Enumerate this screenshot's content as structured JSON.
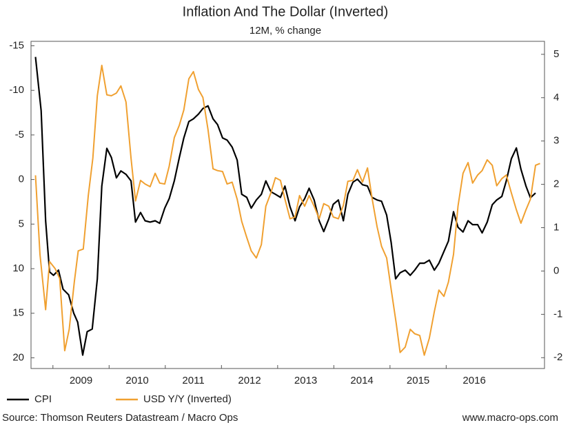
{
  "chart_data": {
    "type": "line",
    "title": "Inflation And The Dollar (Inverted)",
    "subtitle": "12M, % change",
    "source": "Source: Thomson Reuters Datastream / Macro Ops",
    "credit": "www.macro-ops.com",
    "xlim": [
      2008.61,
      2017.75
    ],
    "xticks": [
      {
        "value": 2009,
        "label": "2009"
      },
      {
        "value": 2010,
        "label": "2010"
      },
      {
        "value": 2011,
        "label": "2011"
      },
      {
        "value": 2012,
        "label": "2012"
      },
      {
        "value": 2013,
        "label": "2013"
      },
      {
        "value": 2014,
        "label": "2014"
      },
      {
        "value": 2015,
        "label": "2015"
      },
      {
        "value": 2016,
        "label": "2016"
      }
    ],
    "ylim": [
      -15.5,
      21.2
    ],
    "y_inverted": true,
    "yticks": [
      -15,
      -10,
      -5,
      0,
      5,
      10,
      15,
      20
    ],
    "y2lim": [
      -2.25,
      5.3
    ],
    "y2ticks": [
      -2,
      -1,
      0,
      1,
      2,
      3,
      4,
      5
    ],
    "grid": false,
    "legend": "bottom",
    "series": [
      {
        "name": "CPI",
        "color": "#000000",
        "axis": "y2",
        "x": [
          2008.69,
          2008.79,
          2008.87,
          2008.94,
          2009.01,
          2009.1,
          2009.18,
          2009.28,
          2009.37,
          2009.44,
          2009.53,
          2009.61,
          2009.7,
          2009.79,
          2009.87,
          2009.96,
          2010.04,
          2010.13,
          2010.21,
          2010.3,
          2010.39,
          2010.47,
          2010.56,
          2010.64,
          2010.73,
          2010.82,
          2010.9,
          2010.99,
          2011.07,
          2011.16,
          2011.25,
          2011.33,
          2011.42,
          2011.5,
          2011.59,
          2011.67,
          2011.76,
          2011.85,
          2011.93,
          2012.02,
          2012.1,
          2012.19,
          2012.28,
          2012.36,
          2012.45,
          2012.53,
          2012.62,
          2012.71,
          2012.79,
          2012.88,
          2012.96,
          2013.05,
          2013.13,
          2013.22,
          2013.31,
          2013.39,
          2013.48,
          2013.56,
          2013.65,
          2013.74,
          2013.82,
          2013.91,
          2013.99,
          2014.08,
          2014.17,
          2014.25,
          2014.34,
          2014.42,
          2014.51,
          2014.6,
          2014.68,
          2014.77,
          2014.85,
          2014.94,
          2015.02,
          2015.1,
          2015.18,
          2015.27,
          2015.36,
          2015.44,
          2015.53,
          2015.61,
          2015.7,
          2015.79,
          2015.87,
          2015.96,
          2016.04,
          2016.13,
          2016.21,
          2016.3,
          2016.39,
          2016.47,
          2016.56,
          2016.64,
          2016.73,
          2016.82,
          2016.9,
          2016.99,
          2017.07,
          2017.16,
          2017.25,
          2017.33,
          2017.42,
          2017.5,
          2017.59
        ],
        "values": [
          4.94,
          3.7,
          1.16,
          -0.02,
          -0.1,
          0.02,
          -0.42,
          -0.55,
          -0.97,
          -1.18,
          -1.94,
          -1.4,
          -1.34,
          -0.18,
          1.96,
          2.83,
          2.62,
          2.15,
          2.31,
          2.23,
          2.08,
          1.13,
          1.35,
          1.16,
          1.13,
          1.16,
          1.1,
          1.45,
          1.67,
          2.08,
          2.62,
          3.07,
          3.45,
          3.51,
          3.62,
          3.75,
          3.81,
          3.51,
          3.38,
          3.07,
          3.02,
          2.86,
          2.56,
          1.77,
          1.7,
          1.45,
          1.64,
          1.77,
          2.08,
          1.83,
          1.77,
          1.7,
          1.96,
          1.48,
          1.16,
          1.48,
          1.67,
          1.91,
          1.64,
          1.16,
          0.91,
          1.2,
          1.54,
          1.64,
          1.16,
          1.77,
          2.05,
          2.12,
          1.99,
          1.96,
          1.7,
          1.64,
          1.61,
          1.29,
          0.66,
          -0.18,
          -0.04,
          0.02,
          -0.1,
          0.02,
          0.18,
          0.18,
          0.25,
          0.02,
          0.18,
          0.45,
          0.69,
          1.37,
          1.01,
          0.9,
          1.16,
          1.07,
          1.07,
          0.88,
          1.13,
          1.53,
          1.64,
          1.72,
          2.08,
          2.59,
          2.84,
          2.35,
          1.96,
          1.69,
          1.8
        ]
      },
      {
        "name": "USD Y/Y (Inverted)",
        "color": "#f0a030",
        "axis": "y",
        "x": [
          2008.69,
          2008.77,
          2008.87,
          2008.94,
          2009.04,
          2009.12,
          2009.21,
          2009.29,
          2009.38,
          2009.45,
          2009.54,
          2009.63,
          2009.71,
          2009.79,
          2009.87,
          2009.96,
          2010.04,
          2010.13,
          2010.21,
          2010.3,
          2010.39,
          2010.47,
          2010.56,
          2010.64,
          2010.73,
          2010.82,
          2010.9,
          2010.99,
          2011.07,
          2011.16,
          2011.25,
          2011.33,
          2011.42,
          2011.5,
          2011.59,
          2011.67,
          2011.76,
          2011.85,
          2011.93,
          2012.02,
          2012.1,
          2012.19,
          2012.28,
          2012.36,
          2012.45,
          2012.53,
          2012.62,
          2012.71,
          2012.79,
          2012.88,
          2012.96,
          2013.05,
          2013.13,
          2013.22,
          2013.31,
          2013.39,
          2013.48,
          2013.56,
          2013.65,
          2013.74,
          2013.82,
          2013.91,
          2013.99,
          2014.08,
          2014.17,
          2014.25,
          2014.34,
          2014.42,
          2014.51,
          2014.6,
          2014.68,
          2014.77,
          2014.85,
          2014.94,
          2015.02,
          2015.11,
          2015.18,
          2015.27,
          2015.36,
          2015.44,
          2015.53,
          2015.61,
          2015.7,
          2015.79,
          2015.87,
          2015.96,
          2016.04,
          2016.13,
          2016.21,
          2016.3,
          2016.39,
          2016.47,
          2016.56,
          2016.64,
          2016.73,
          2016.82,
          2016.9,
          2016.99,
          2017.07,
          2017.16,
          2017.25,
          2017.33,
          2017.42,
          2017.5,
          2017.59,
          2017.67
        ],
        "values": [
          -0.47,
          8.4,
          14.6,
          9.2,
          10,
          11.1,
          19.2,
          16.8,
          11.5,
          8.0,
          7.8,
          1.8,
          -2.4,
          -9.4,
          -12.8,
          -9.5,
          -9.4,
          -9.7,
          -10.5,
          -8.7,
          -2.4,
          2.4,
          0.1,
          0.5,
          0.8,
          -0.7,
          0.4,
          0.5,
          -1.5,
          -4.7,
          -6.1,
          -7.8,
          -11.3,
          -12.1,
          -10.1,
          -9.2,
          -5.6,
          -1.2,
          -1.0,
          -0.9,
          0.5,
          0.3,
          2.2,
          4.7,
          6.5,
          8.0,
          8.8,
          7.3,
          3.0,
          1.5,
          -0.2,
          0.1,
          2.2,
          4.4,
          4.2,
          1.8,
          3.0,
          1.8,
          3.0,
          4.4,
          2.7,
          3.0,
          4.2,
          4.4,
          2.9,
          0.2,
          0.1,
          -1.1,
          0.3,
          -1.3,
          2.1,
          5.3,
          7.5,
          8.8,
          12.3,
          16.1,
          19.4,
          18.8,
          16.8,
          17.3,
          17.5,
          19.7,
          17.8,
          14.8,
          12.4,
          13.1,
          11.5,
          8.4,
          3.0,
          -0.7,
          -1.9,
          0.4,
          -0.5,
          -1.0,
          -2.2,
          -1.6,
          0.7,
          -0.1,
          -0.5,
          1.5,
          3.4,
          4.9,
          3.4,
          2.2,
          -1.6,
          -1.8
        ]
      }
    ]
  }
}
